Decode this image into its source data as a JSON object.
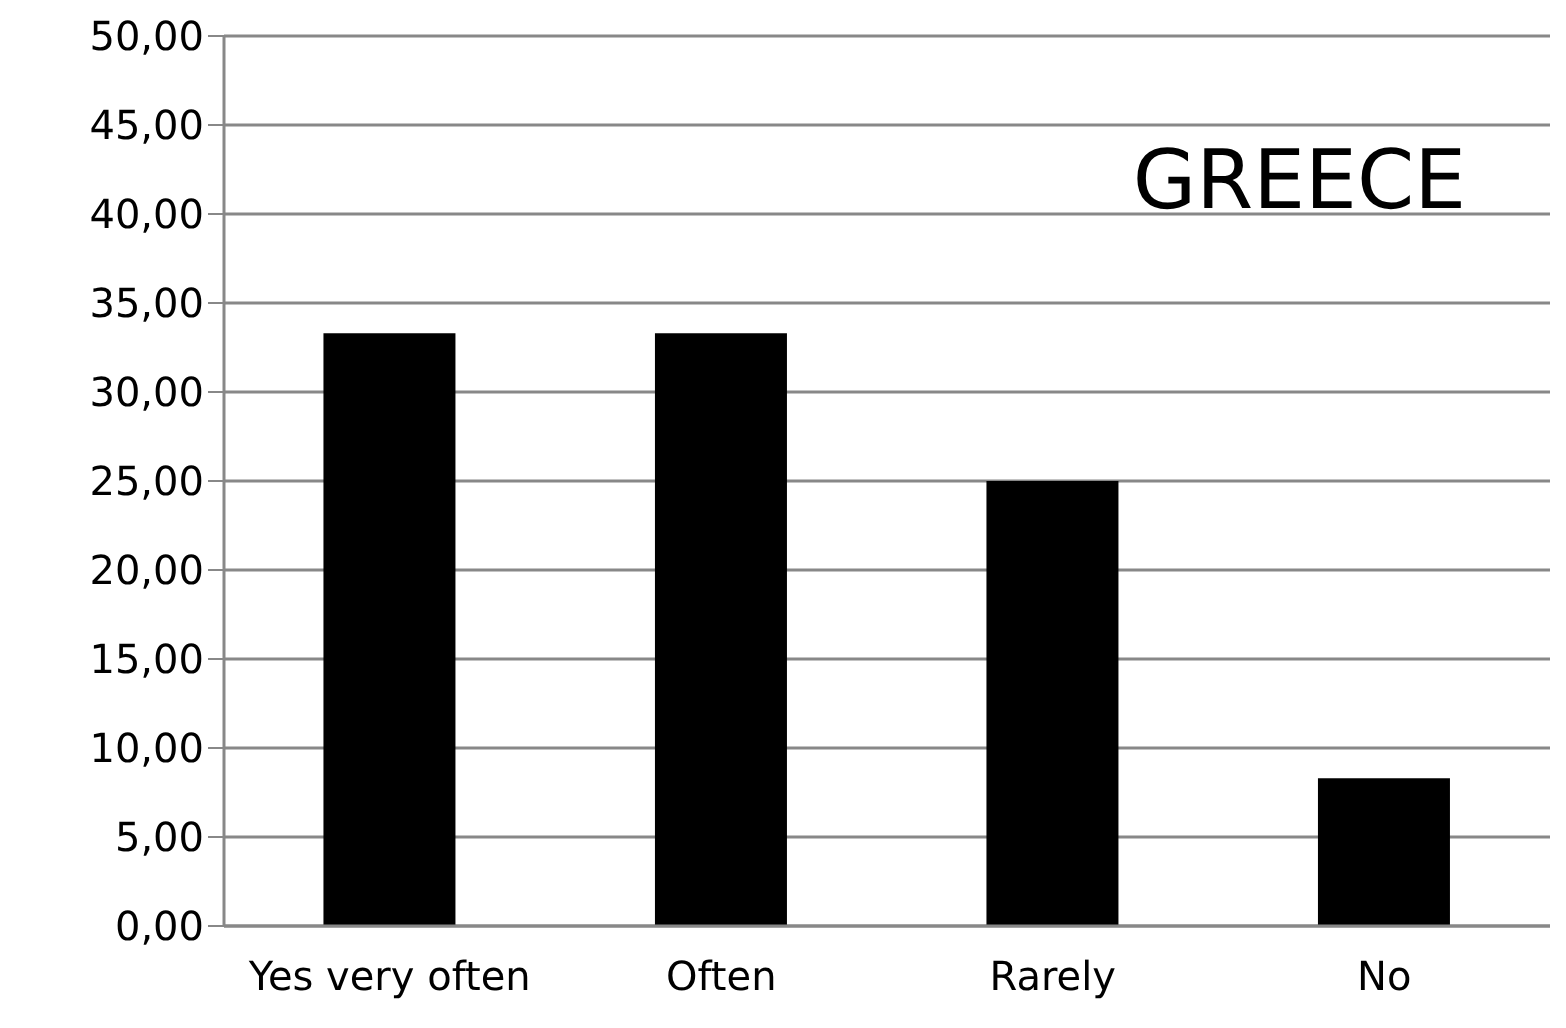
{
  "chart_data": {
    "type": "bar",
    "title": "GREECE",
    "categories": [
      "Yes very often",
      "Often",
      "Rarely",
      "No"
    ],
    "values": [
      33.3,
      33.3,
      25.0,
      8.3
    ],
    "color": "#000000",
    "ylim": [
      0,
      50
    ],
    "yticks": [
      {
        "value": 0,
        "label": "0,00"
      },
      {
        "value": 5,
        "label": "5,00"
      },
      {
        "value": 10,
        "label": "10,00"
      },
      {
        "value": 15,
        "label": "15,00"
      },
      {
        "value": 20,
        "label": "20,00"
      },
      {
        "value": 25,
        "label": "25,00"
      },
      {
        "value": 30,
        "label": "30,00"
      },
      {
        "value": 35,
        "label": "35,00"
      },
      {
        "value": 40,
        "label": "40,00"
      },
      {
        "value": 45,
        "label": "45,00"
      },
      {
        "value": 50,
        "label": "50,00"
      }
    ],
    "grid": "y"
  }
}
